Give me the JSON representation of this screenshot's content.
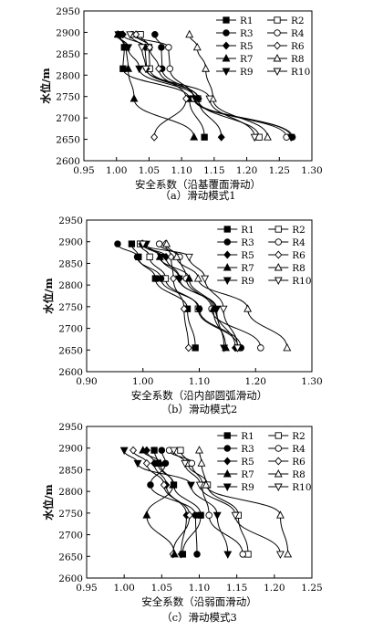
{
  "chart_data": [
    {
      "type": "line",
      "caption": "（a）滑动模式1",
      "xlabel": "安全系数（沿基覆面滑动）",
      "ylabel": "水位/m",
      "xlim": [
        0.95,
        1.3
      ],
      "ylim": [
        2600,
        2950
      ],
      "xticks": [
        "0.95",
        "1.00",
        "1.05",
        "1.10",
        "1.15",
        "1.20",
        "1.25",
        "1.30"
      ],
      "yticks": [
        "2600",
        "2650",
        "2700",
        "2750",
        "2800",
        "2850",
        "2900",
        "2950"
      ],
      "y": [
        2895,
        2865,
        2815,
        2745,
        2655
      ],
      "legend": "top-right",
      "series": [
        {
          "name": "R1",
          "marker": "square-filled",
          "values": [
            1.005,
            1.012,
            1.01,
            1.112,
            1.135
          ]
        },
        {
          "name": "R2",
          "marker": "square-open",
          "values": [
            1.037,
            1.05,
            1.051,
            1.125,
            1.219
          ]
        },
        {
          "name": "R3",
          "marker": "circle-filled",
          "values": [
            1.059,
            1.069,
            1.07,
            1.119,
            1.27
          ]
        },
        {
          "name": "R4",
          "marker": "circle-open",
          "values": [
            1.024,
            1.08,
            1.082,
            1.119,
            1.261
          ]
        },
        {
          "name": "R5",
          "marker": "diamond-filled",
          "values": [
            1.01,
            1.044,
            1.046,
            1.126,
            1.161
          ]
        },
        {
          "name": "R6",
          "marker": "diamond-open",
          "values": [
            1.03,
            1.051,
            1.065,
            1.107,
            1.058
          ]
        },
        {
          "name": "R7",
          "marker": "triangle-up-filled",
          "values": [
            1.002,
            1.015,
            1.018,
            1.027,
            1.119
          ]
        },
        {
          "name": "R8",
          "marker": "triangle-up-open",
          "values": [
            1.112,
            1.124,
            1.137,
            1.148,
            1.232
          ]
        },
        {
          "name": "R9",
          "marker": "triangle-down-filled",
          "values": [
            1.003,
            1.018,
            1.035,
            1.121,
            1.268
          ]
        },
        {
          "name": "R10",
          "marker": "triangle-down-open",
          "values": [
            1.021,
            1.039,
            1.045,
            1.143,
            1.212
          ]
        }
      ]
    },
    {
      "type": "line",
      "caption": "（b）滑动模式2",
      "xlabel": "安全系数（沿内部圆弧滑动）",
      "ylabel": "水位/m",
      "xlim": [
        0.9,
        1.3
      ],
      "ylim": [
        2600,
        2950
      ],
      "xticks": [
        "0.90",
        "1.00",
        "1.10",
        "1.20",
        "1.30"
      ],
      "yticks": [
        "2600",
        "2650",
        "2700",
        "2750",
        "2800",
        "2850",
        "2900",
        "2950"
      ],
      "y": [
        2895,
        2865,
        2815,
        2745,
        2655
      ],
      "legend": "top-right",
      "series": [
        {
          "name": "R1",
          "marker": "square-filled",
          "values": [
            0.98,
            0.992,
            1.022,
            1.079,
            1.093
          ]
        },
        {
          "name": "R2",
          "marker": "square-open",
          "values": [
            0.995,
            1.012,
            1.04,
            1.098,
            1.169
          ]
        },
        {
          "name": "R3",
          "marker": "circle-filled",
          "values": [
            0.955,
            0.99,
            1.032,
            1.1,
            1.174
          ]
        },
        {
          "name": "R4",
          "marker": "circle-open",
          "values": [
            1.029,
            1.065,
            1.077,
            1.122,
            1.209
          ]
        },
        {
          "name": "R5",
          "marker": "diamond-filled",
          "values": [
            0.998,
            1.041,
            1.065,
            1.129,
            1.164
          ]
        },
        {
          "name": "R6",
          "marker": "diamond-open",
          "values": [
            1.04,
            1.05,
            1.054,
            1.073,
            1.081
          ]
        },
        {
          "name": "R7",
          "marker": "triangle-up-filled",
          "values": [
            1.0,
            1.03,
            1.082,
            1.125,
            1.147
          ]
        },
        {
          "name": "R8",
          "marker": "triangle-up-open",
          "values": [
            1.042,
            1.06,
            1.098,
            1.186,
            1.256
          ]
        },
        {
          "name": "R9",
          "marker": "triangle-down-filled",
          "values": [
            1.006,
            1.032,
            1.064,
            1.131,
            1.144
          ]
        },
        {
          "name": "R10",
          "marker": "triangle-down-open",
          "values": [
            1.0,
            1.082,
            1.11,
            1.143,
            1.168
          ]
        }
      ]
    },
    {
      "type": "line",
      "caption": "（c）滑动模式3",
      "xlabel": "安全系数（沿弱面滑动）",
      "ylabel": "水位/m",
      "xlim": [
        0.95,
        1.25
      ],
      "ylim": [
        2600,
        2950
      ],
      "xticks": [
        "0.95",
        "1.00",
        "1.05",
        "1.10",
        "1.15",
        "1.20",
        "1.25"
      ],
      "yticks": [
        "2600",
        "2650",
        "2700",
        "2750",
        "2800",
        "2850",
        "2900",
        "2950"
      ],
      "y": [
        2895,
        2865,
        2815,
        2745,
        2655
      ],
      "legend": "top-right",
      "series": [
        {
          "name": "R1",
          "marker": "square-filled",
          "values": [
            1.04,
            1.045,
            1.066,
            1.102,
            1.078
          ]
        },
        {
          "name": "R2",
          "marker": "square-open",
          "values": [
            1.075,
            1.085,
            1.111,
            1.152,
            1.165
          ]
        },
        {
          "name": "R3",
          "marker": "circle-filled",
          "values": [
            1.05,
            1.055,
            1.035,
            1.095,
            1.097
          ]
        },
        {
          "name": "R4",
          "marker": "circle-open",
          "values": [
            1.06,
            1.09,
            1.104,
            1.113,
            1.158
          ]
        },
        {
          "name": "R5",
          "marker": "diamond-filled",
          "values": [
            1.03,
            1.04,
            1.056,
            1.083,
            1.076
          ]
        },
        {
          "name": "R6",
          "marker": "diamond-open",
          "values": [
            1.012,
            1.03,
            1.053,
            1.087,
            1.065
          ]
        },
        {
          "name": "R7",
          "marker": "triangle-up-filled",
          "values": [
            1.025,
            1.048,
            1.065,
            1.03,
            1.067
          ]
        },
        {
          "name": "R8",
          "marker": "triangle-up-open",
          "values": [
            1.1,
            1.103,
            1.109,
            1.208,
            1.218
          ]
        },
        {
          "name": "R9",
          "marker": "triangle-down-filled",
          "values": [
            1.0,
            1.018,
            1.089,
            1.124,
            1.138
          ]
        },
        {
          "name": "R10",
          "marker": "triangle-down-open",
          "values": [
            1.066,
            1.081,
            1.101,
            1.148,
            1.208
          ]
        }
      ]
    }
  ]
}
